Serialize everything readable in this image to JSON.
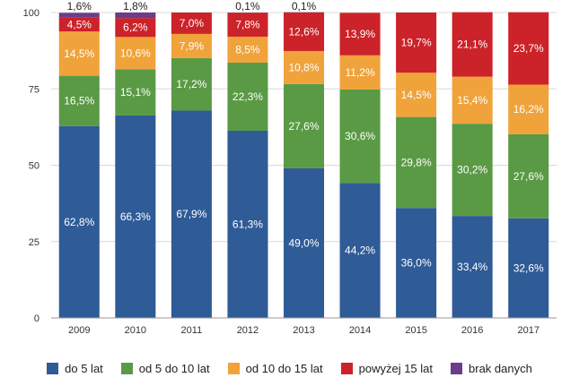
{
  "chart_data": {
    "type": "bar",
    "stacked": true,
    "categories": [
      "2009",
      "2010",
      "2011",
      "2012",
      "2013",
      "2014",
      "2015",
      "2016",
      "2017"
    ],
    "ylim": [
      0,
      100
    ],
    "yticks": [
      0,
      25,
      50,
      75,
      100
    ],
    "grid": true,
    "legend_position": "bottom",
    "series": [
      {
        "name": "do 5 lat",
        "color": "#2f5b97",
        "values": [
          62.8,
          66.3,
          67.9,
          61.3,
          49.0,
          44.2,
          36.0,
          33.4,
          32.6
        ],
        "labels": [
          "62,8%",
          "66,3%",
          "67,9%",
          "61,3%",
          "49,0%",
          "44,2%",
          "36,0%",
          "33,4%",
          "32,6%"
        ]
      },
      {
        "name": "od 5 do 10 lat",
        "color": "#5a9a45",
        "values": [
          16.5,
          15.1,
          17.2,
          22.3,
          27.6,
          30.6,
          29.8,
          30.2,
          27.6
        ],
        "labels": [
          "16,5%",
          "15,1%",
          "17,2%",
          "22,3%",
          "27,6%",
          "30,6%",
          "29,8%",
          "30,2%",
          "27,6%"
        ]
      },
      {
        "name": "od 10 do 15 lat",
        "color": "#f0a33a",
        "values": [
          14.5,
          10.6,
          7.9,
          8.5,
          10.8,
          11.2,
          14.5,
          15.4,
          16.2
        ],
        "labels": [
          "14,5%",
          "10,6%",
          "7,9%",
          "8,5%",
          "10,8%",
          "11,2%",
          "14,5%",
          "15,4%",
          "16,2%"
        ]
      },
      {
        "name": "powyżej 15 lat",
        "color": "#cc2229",
        "values": [
          4.5,
          6.2,
          7.0,
          7.8,
          12.6,
          13.9,
          19.7,
          21.1,
          23.7
        ],
        "labels": [
          "4,5%",
          "6,2%",
          "7,0%",
          "7,8%",
          "12,6%",
          "13,9%",
          "19,7%",
          "21,1%",
          "23,7%"
        ]
      },
      {
        "name": "brak danych",
        "color": "#6b3d8a",
        "values": [
          1.6,
          1.8,
          0,
          0.1,
          0.1,
          0,
          0,
          0,
          0
        ],
        "labels": [
          "1,6%",
          "1,8%",
          "",
          "0,1%",
          "0,1%",
          "",
          "",
          "",
          ""
        ]
      }
    ]
  }
}
